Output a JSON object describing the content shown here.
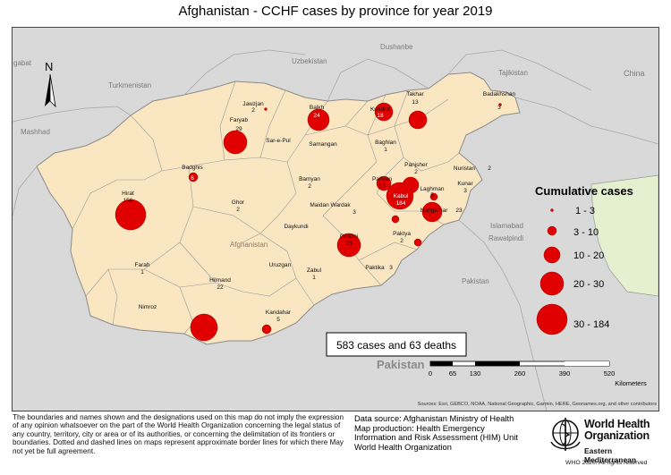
{
  "title": "Afghanistan - CCHF cases by province for year 2019",
  "north_label": "N",
  "summary_box": "583 cases and 63 deaths",
  "legend": {
    "title": "Cumulative cases",
    "classes": [
      "1 - 3",
      "3 - 10",
      "10 - 20",
      "20 - 30",
      "30 - 184"
    ]
  },
  "scale_bar": {
    "ticks": [
      "0",
      "65",
      "130",
      "260",
      "390",
      "520"
    ],
    "unit": "Kilometers"
  },
  "sources": "Sources: Esri, GEBCO, NOAA, National Geographic, Garmin, HERE, Geonames.org, and other contributors",
  "neighbour_labels": {
    "uzbekistan": "Uzbekistan",
    "dushanbe": "Dushanbe",
    "tajikistan": "Tajikistan",
    "china": "China",
    "turkmenistan": "Turkmenistan",
    "mashhad": "Mashhad",
    "ashgabat": "gabat",
    "islamabad": "Islamabad",
    "rawalpindi": "Rawalpindi",
    "pakistan_small": "Pakistan",
    "pakistan_big": "Pakistan",
    "afghanistan": "Afghanistan"
  },
  "provinces": [
    {
      "name": "Jawzjan",
      "cases": "2"
    },
    {
      "name": "Balkh",
      "cases": "24"
    },
    {
      "name": "Kunduz",
      "cases": "18"
    },
    {
      "name": "Takhar",
      "cases": "13"
    },
    {
      "name": "Badakhshan",
      "cases": "3"
    },
    {
      "name": "Faryab",
      "cases": "29"
    },
    {
      "name": "Sar-e-Pul",
      "cases": ""
    },
    {
      "name": "Samangan",
      "cases": ""
    },
    {
      "name": "Baghlan",
      "cases": "1"
    },
    {
      "name": "Badghis",
      "cases": "6"
    },
    {
      "name": "Panjsher",
      "cases": "2"
    },
    {
      "name": "Nuristan",
      "cases": "2"
    },
    {
      "name": "Parwan",
      "cases": "13"
    },
    {
      "name": "Laghman",
      "cases": "5"
    },
    {
      "name": "Kunar",
      "cases": "3"
    },
    {
      "name": "Kabul",
      "cases": "184"
    },
    {
      "name": "Bamyan",
      "cases": "2"
    },
    {
      "name": "Hirat",
      "cases": "156"
    },
    {
      "name": "Ghor",
      "cases": "2"
    },
    {
      "name": "Maidan Wardak",
      "cases": "3"
    },
    {
      "name": "Nangarhar",
      "cases": "23"
    },
    {
      "name": "Daykundi",
      "cases": ""
    },
    {
      "name": "Ghazni",
      "cases": "23"
    },
    {
      "name": "Paktya",
      "cases": "2"
    },
    {
      "name": "Farah",
      "cases": "1"
    },
    {
      "name": "Uruzgan",
      "cases": ""
    },
    {
      "name": "Zabul",
      "cases": "1"
    },
    {
      "name": "Paktika",
      "cases": "3"
    },
    {
      "name": "Hilmand",
      "cases": "22"
    },
    {
      "name": "Nimroz",
      "cases": ""
    },
    {
      "name": "Kandahar",
      "cases": "5"
    }
  ],
  "disclaimer": "The boundaries and names shown and the designations used on this map do not imply the expression of any opinion whatsoever on the part of the World Health Organization concerning the legal status of any country, territory, city or area or of its authorities, or concerning the delimitation of its frontiers or boundaries. Dotted and dashed lines on maps represent approximate border lines for which there May not yet be full agreement.",
  "credits": {
    "data_source": "Data source: Afghanistan Ministry of Health",
    "production_1": "Map production: Health Emergency",
    "production_2": "Information and Risk Assessment (HIM) Unit",
    "production_3": "World Health Organization"
  },
  "who": {
    "name_line1": "World Health",
    "name_line2": "Organization",
    "region": "Eastern Mediterranean",
    "copyright": "WHO 2020. All rights reserved"
  },
  "colors": {
    "afghanistan_fill": "#fbe6c2",
    "china_fill": "#e4f0cf",
    "case_circle": "#e00000",
    "sea_background": "#d9d9d9"
  }
}
